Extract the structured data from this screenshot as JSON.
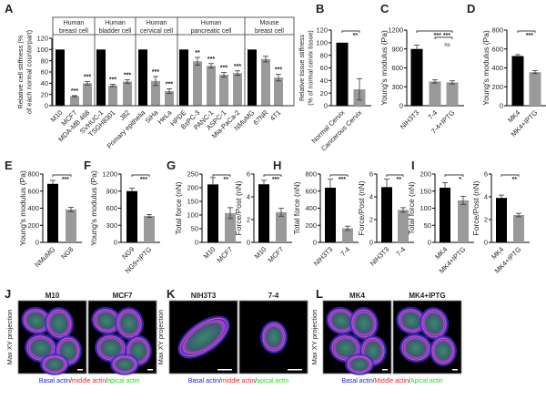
{
  "panel_letters": [
    "A",
    "B",
    "C",
    "D",
    "E",
    "F",
    "G",
    "H",
    "I",
    "J",
    "K",
    "L"
  ],
  "colors": {
    "control": "#000000",
    "treated": "#9a9a9a",
    "basal": "#2020ff",
    "middle": "#ff2020",
    "apical": "#20e020"
  },
  "chart_data": [
    {
      "id": "A",
      "type": "bar",
      "ylabel": "Relative cell stiffness (% of each normal counterpart)",
      "ylim": [
        0,
        120
      ],
      "yticks": [
        0,
        20,
        40,
        60,
        80,
        100,
        120
      ],
      "groups": [
        {
          "label": "Human breast cell",
          "size": 3
        },
        {
          "label": "Human bladder cell",
          "size": 3
        },
        {
          "label": "Human cervical cell",
          "size": 3
        },
        {
          "label": "Human pancreatic cell",
          "size": 5
        },
        {
          "label": "Mouse breast cell",
          "size": 3
        }
      ],
      "categories": [
        "M10",
        "MCF7",
        "MDA-MB 468",
        "SVHUC-1",
        "TSGH8301",
        "J82",
        "Primary epithelia",
        "SiHa",
        "HeLa",
        "HPDE",
        "BxPC-3",
        "PANC-1",
        "ASPC-1",
        "Mia-PaCa-2",
        "NMuMG",
        "67NR",
        "4T1"
      ],
      "values": [
        100,
        17,
        40,
        100,
        36,
        43,
        100,
        44,
        26,
        100,
        79,
        71,
        55,
        58,
        100,
        83,
        50
      ],
      "errors": [
        0,
        1,
        3,
        0,
        2,
        3,
        0,
        8,
        4,
        0,
        7,
        4,
        4,
        4,
        0,
        5,
        6
      ],
      "control": [
        true,
        false,
        false,
        true,
        false,
        false,
        true,
        false,
        false,
        true,
        false,
        false,
        false,
        false,
        true,
        false,
        false
      ],
      "sig": [
        "",
        "***",
        "***",
        "",
        "***",
        "***",
        "",
        "***",
        "***",
        "",
        "**",
        "***",
        "***",
        "***",
        "",
        "",
        "***"
      ]
    },
    {
      "id": "B",
      "type": "bar",
      "ylabel": "Relative tissue stiffness (% of normal cervix tissue)",
      "ylim": [
        0,
        120
      ],
      "yticks": [
        0,
        20,
        40,
        60,
        80,
        100,
        120
      ],
      "categories": [
        "Normal Cervix",
        "Cancerous Cervix"
      ],
      "values": [
        100,
        26
      ],
      "errors": [
        0,
        17
      ],
      "control": [
        true,
        false
      ],
      "brackets": [
        {
          "from": 0,
          "to": 1,
          "text": "**"
        }
      ]
    },
    {
      "id": "C",
      "type": "bar",
      "ylabel": "Young's modulus (Pa)",
      "ylim": [
        0,
        1200
      ],
      "yticks": [
        0,
        300,
        600,
        900,
        1200
      ],
      "categories": [
        "NIH3T3",
        "7-4",
        "7-4+IPTG"
      ],
      "values": [
        900,
        385,
        370
      ],
      "errors": [
        60,
        25,
        25
      ],
      "control": [
        true,
        false,
        false
      ],
      "brackets": [
        {
          "from": 0,
          "to": 2,
          "text": "***   ***"
        },
        {
          "from": 1,
          "to": 2,
          "text": "ns"
        }
      ]
    },
    {
      "id": "D",
      "type": "bar",
      "ylabel": "Young's modulus (Pa)",
      "ylim": [
        0,
        800
      ],
      "yticks": [
        0,
        200,
        400,
        600,
        800
      ],
      "categories": [
        "MK4",
        "MK4+IPTG"
      ],
      "values": [
        525,
        355
      ],
      "errors": [
        15,
        15
      ],
      "control": [
        true,
        false
      ],
      "brackets": [
        {
          "from": 0,
          "to": 1,
          "text": "***"
        }
      ]
    },
    {
      "id": "E",
      "type": "bar",
      "ylabel": "Young's modulus (Pa)",
      "ylim": [
        0,
        800
      ],
      "yticks": [
        0,
        200,
        400,
        600,
        800
      ],
      "categories": [
        "NMuMG",
        "NG8"
      ],
      "values": [
        685,
        385
      ],
      "errors": [
        40,
        25
      ],
      "control": [
        true,
        false
      ],
      "brackets": [
        {
          "from": 0,
          "to": 1,
          "text": "***"
        }
      ]
    },
    {
      "id": "F",
      "type": "bar",
      "ylabel": "Young's modulus (Pa)",
      "ylim": [
        0,
        1200
      ],
      "yticks": [
        0,
        300,
        600,
        900,
        1200
      ],
      "categories": [
        "NG9",
        "NG9+IPTG"
      ],
      "values": [
        900,
        465
      ],
      "errors": [
        50,
        25
      ],
      "control": [
        true,
        false
      ],
      "brackets": [
        {
          "from": 0,
          "to": 1,
          "text": "***"
        }
      ]
    },
    {
      "id": "G1",
      "type": "bar",
      "ylabel": "Total force (nN)",
      "ylim": [
        0,
        250
      ],
      "yticks": [
        0,
        50,
        100,
        150,
        200,
        250
      ],
      "categories": [
        "M10",
        "MCF7"
      ],
      "values": [
        212,
        107
      ],
      "errors": [
        25,
        20
      ],
      "control": [
        true,
        false
      ],
      "brackets": [
        {
          "from": 0,
          "to": 1,
          "text": "**"
        }
      ]
    },
    {
      "id": "G2",
      "type": "bar",
      "ylabel": "Force/Post (nN)",
      "ylim": [
        0,
        6
      ],
      "yticks": [
        0,
        2,
        4,
        6
      ],
      "categories": [
        "M10",
        "MCF7"
      ],
      "values": [
        5.1,
        2.65
      ],
      "errors": [
        0.35,
        0.35
      ],
      "control": [
        true,
        false
      ],
      "brackets": [
        {
          "from": 0,
          "to": 1,
          "text": "***"
        }
      ]
    },
    {
      "id": "H1",
      "type": "bar",
      "ylabel": "Total force (nN)",
      "ylim": [
        0,
        800
      ],
      "yticks": [
        0,
        200,
        400,
        600,
        800
      ],
      "categories": [
        "NIH3T3",
        "7-4"
      ],
      "values": [
        640,
        165
      ],
      "errors": [
        100,
        25
      ],
      "control": [
        true,
        false
      ],
      "brackets": [
        {
          "from": 0,
          "to": 1,
          "text": "***"
        }
      ]
    },
    {
      "id": "H2",
      "type": "bar",
      "ylabel": "Force/Post (nN)",
      "ylim": [
        0,
        6
      ],
      "yticks": [
        0,
        2,
        4,
        6
      ],
      "categories": [
        "NIH3T3",
        "7-4"
      ],
      "values": [
        4.85,
        2.85
      ],
      "errors": [
        0.7,
        0.2
      ],
      "control": [
        true,
        false
      ],
      "brackets": [
        {
          "from": 0,
          "to": 1,
          "text": "**"
        }
      ]
    },
    {
      "id": "I1",
      "type": "bar",
      "ylabel": "Total force (nN)",
      "ylim": [
        0,
        200
      ],
      "yticks": [
        0,
        50,
        100,
        150,
        200
      ],
      "categories": [
        "MK4",
        "MK4+IPTG"
      ],
      "values": [
        160,
        123
      ],
      "errors": [
        15,
        12
      ],
      "control": [
        true,
        false
      ],
      "brackets": [
        {
          "from": 0,
          "to": 1,
          "text": "*"
        }
      ]
    },
    {
      "id": "I2",
      "type": "bar",
      "ylabel": "Force/Post (nN)",
      "ylim": [
        0,
        6
      ],
      "yticks": [
        0,
        2,
        4,
        6
      ],
      "categories": [
        "MK4",
        "MK4+IPTG"
      ],
      "values": [
        3.9,
        2.4
      ],
      "errors": [
        0.25,
        0.15
      ],
      "control": [
        true,
        false
      ],
      "brackets": [
        {
          "from": 0,
          "to": 1,
          "text": "**"
        }
      ]
    }
  ],
  "images": {
    "J": {
      "side_label": "Max XY projection",
      "titles": [
        "M10",
        "MCF7"
      ],
      "legend": [
        "Basal actin",
        "/",
        "middle actin",
        "/",
        "apical actin"
      ]
    },
    "K": {
      "side_label": "Max XY projection",
      "titles": [
        "NIH3T3",
        "7-4"
      ],
      "legend": [
        "Basal actin",
        "/",
        "middle actin",
        "/",
        "apical actin"
      ]
    },
    "L": {
      "side_label": "Max XY projection",
      "titles": [
        "MK4",
        "MK4+IPTG"
      ],
      "legend": [
        "Basal actin",
        "/",
        "Middle actin",
        "/",
        "Apical actin"
      ]
    }
  }
}
